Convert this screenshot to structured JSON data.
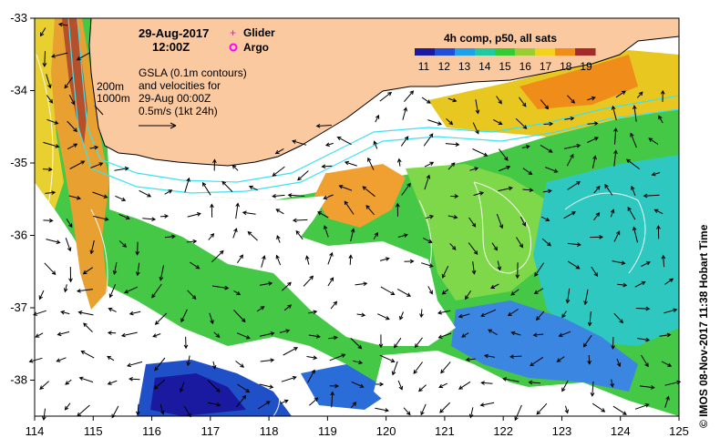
{
  "map": {
    "date_line": "29-Aug-2017",
    "time_line": "12:00Z",
    "legend": [
      {
        "label": "Glider",
        "color": "#ff00ff",
        "marker": "plus"
      },
      {
        "label": "Argo",
        "color": "#ff00ff",
        "marker": "circle"
      }
    ],
    "isobath_labels": [
      "200m",
      "1000m"
    ],
    "gsla_lines": [
      "GSLA (0.1m contours)",
      "and velocities for",
      "29-Aug 00:00Z",
      "0.5m/s (1kt 24h)"
    ],
    "colorbar": {
      "title": "4h comp, p50, all sats",
      "ticks": [
        "11",
        "12",
        "13",
        "14",
        "15",
        "16",
        "17",
        "18",
        "19"
      ],
      "colors": [
        "#1a1aa0",
        "#1f4fd8",
        "#1fa0e8",
        "#22c8a0",
        "#33cc33",
        "#9acd32",
        "#f2d21a",
        "#f08c1a",
        "#a52a2a"
      ]
    },
    "x_ticks": [
      "114",
      "115",
      "116",
      "117",
      "118",
      "119",
      "120",
      "121",
      "122",
      "123",
      "124",
      "125"
    ],
    "y_ticks": [
      "-33",
      "-34",
      "-35",
      "-36",
      "-37",
      "-38"
    ],
    "credit": "© IMOS 08-Nov-2017 11:38 Hobart Time",
    "colors": {
      "land": "#fac9a0",
      "coast": "#000000",
      "isobath": "#40e0f0",
      "contour": "#ffffff"
    }
  }
}
